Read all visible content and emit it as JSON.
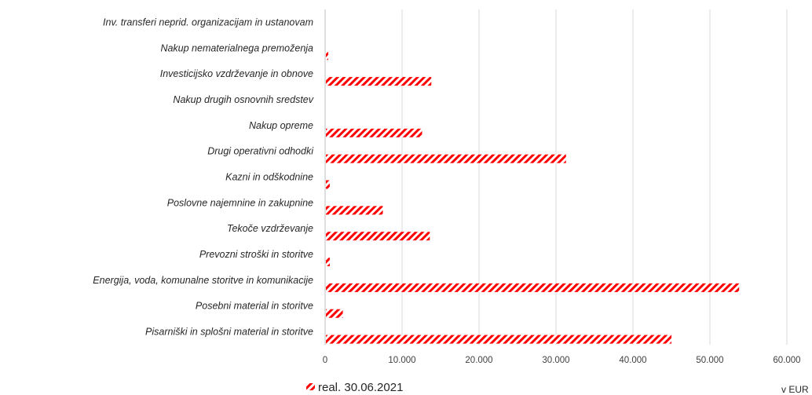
{
  "chart_data": {
    "type": "bar",
    "orientation": "horizontal",
    "categories": [
      "Inv. transferi neprid. organizacijam in ustanovam",
      "Nakup nematerialnega premoženja",
      "Investicijsko vzdrževanje in obnove",
      "Nakup drugih osnovnih sredstev",
      "Nakup opreme",
      "Drugi operativni odhodki",
      "Kazni in odškodnine",
      "Poslovne najemnine in zakupnine",
      "Tekoče vzdrževanje",
      "Prevozni stroški in storitve",
      "Energija, voda, komunalne storitve in komunikacije",
      "Posebni material in storitve",
      "Pisarniški in splošni material in storitve"
    ],
    "series": [
      {
        "name": "real. 30.06.2021",
        "values": [
          0,
          300,
          13700,
          0,
          12500,
          31200,
          500,
          7400,
          13500,
          500,
          53700,
          2200,
          44900
        ]
      }
    ],
    "xlim": [
      0,
      60000
    ],
    "xticks": [
      "0",
      "10.000",
      "20.000",
      "30.000",
      "40.000",
      "50.000",
      "60.000"
    ],
    "unit_label": "v EUR",
    "grid": "vertical",
    "legend_position": "bottom-left",
    "colors": {
      "bar": "#ff0000",
      "grid": "#d9d9d9",
      "axis": "#bfbfbf"
    }
  }
}
